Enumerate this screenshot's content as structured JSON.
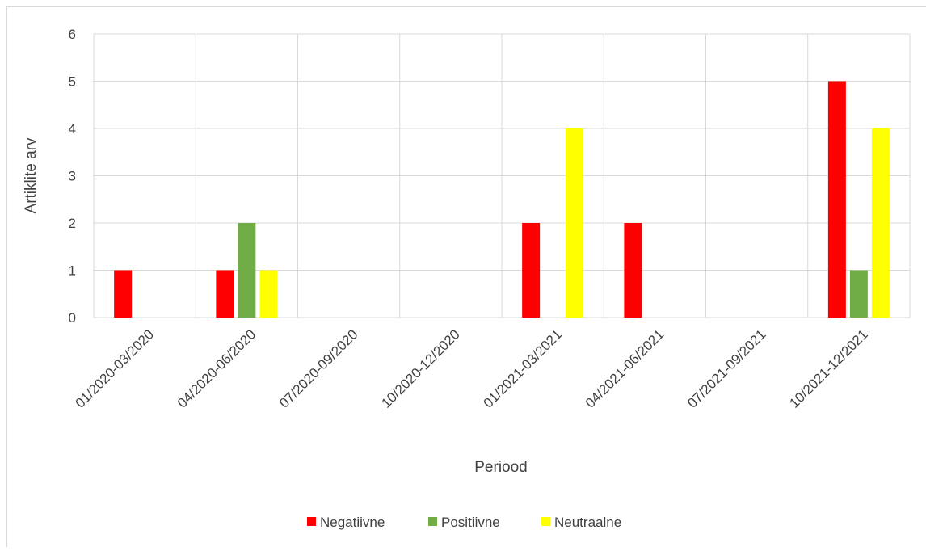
{
  "chart_data": {
    "type": "bar",
    "title": "",
    "xlabel": "Periood",
    "ylabel": "Artiklite arv",
    "ylim": [
      0,
      6
    ],
    "yticks": [
      0,
      1,
      2,
      3,
      4,
      5,
      6
    ],
    "grid": "both",
    "legend_position": "bottom",
    "categories": [
      "01/2020-03/2020",
      "04/2020-06/2020",
      "07/2020-09/2020",
      "10/2020-12/2020",
      "01/2021-03/2021",
      "04/2021-06/2021",
      "07/2021-09/2021",
      "10/2021-12/2021"
    ],
    "series": [
      {
        "name": "Negatiivne",
        "color": "#ff0000",
        "values": [
          1,
          1,
          0,
          0,
          2,
          2,
          0,
          5
        ]
      },
      {
        "name": "Positiivne",
        "color": "#70ad47",
        "values": [
          0,
          2,
          0,
          0,
          0,
          0,
          0,
          1
        ]
      },
      {
        "name": "Neutraalne",
        "color": "#ffff00",
        "values": [
          0,
          1,
          0,
          0,
          4,
          0,
          0,
          4
        ]
      }
    ]
  }
}
